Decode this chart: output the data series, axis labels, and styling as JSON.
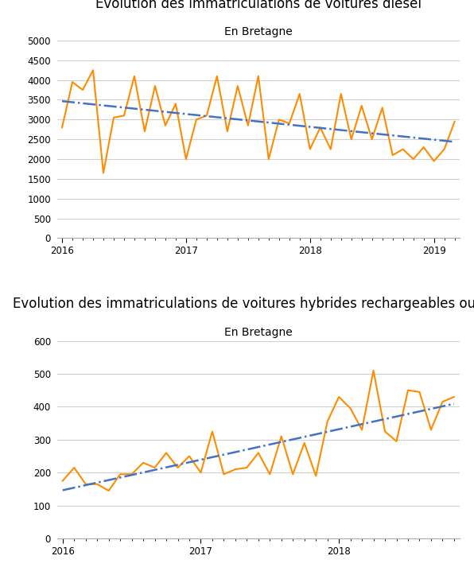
{
  "title1": "Evolution des immatriculations de voitures diesel",
  "subtitle1": "En Bretagne",
  "title2": "Evolution des immatriculations de voitures hybrides rechargeables ou non",
  "subtitle2": "En Bretagne",
  "diesel_values": [
    2800,
    3950,
    3750,
    4250,
    1650,
    3050,
    3100,
    4100,
    2700,
    3850,
    2850,
    3400,
    2000,
    3000,
    3100,
    4100,
    2700,
    3850,
    2850,
    4100,
    2000,
    3000,
    2900,
    3650,
    2250,
    2800,
    2250,
    3650,
    2500,
    3350,
    2500,
    3300,
    2100,
    2250,
    2000,
    2300,
    1950,
    2250,
    2950
  ],
  "hybrid_values": [
    175,
    215,
    165,
    165,
    145,
    195,
    195,
    230,
    215,
    260,
    215,
    250,
    200,
    325,
    195,
    210,
    215,
    260,
    195,
    310,
    195,
    290,
    190,
    355,
    430,
    395,
    330,
    510,
    325,
    295,
    450,
    445,
    330,
    415,
    430
  ],
  "diesel_ylim": [
    0,
    5000
  ],
  "diesel_yticks": [
    0,
    500,
    1000,
    1500,
    2000,
    2500,
    3000,
    3500,
    4000,
    4500,
    5000
  ],
  "hybrid_ylim": [
    0,
    600
  ],
  "hybrid_yticks": [
    0,
    100,
    200,
    300,
    400,
    500,
    600
  ],
  "line_color": "#FF8C00",
  "trend_color": "#4472C4",
  "background_color": "#FFFFFF",
  "grid_color": "#D0D0D0",
  "xtick_labels": [
    "2016",
    "2017",
    "2018",
    "2019"
  ],
  "title_fontsize": 12,
  "subtitle_fontsize": 10
}
